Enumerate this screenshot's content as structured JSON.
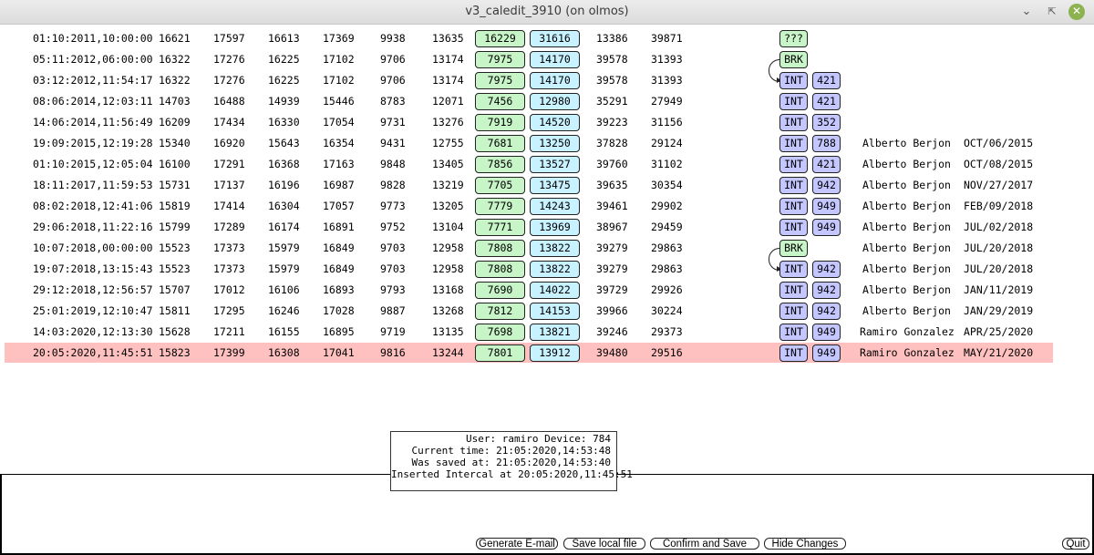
{
  "window": {
    "title": "v3_caledit_3910 (on olmos)",
    "min_icon": "minimize-icon",
    "max_icon": "maximize-icon",
    "close_icon": "close-icon"
  },
  "colors": {
    "green": "#c8f5c8",
    "cyan": "#c8f2ff",
    "purple": "#c4c6ff",
    "selected_row": "#ffc0c0"
  },
  "rows": [
    {
      "ts": "01:10:2011,10:00:00",
      "v": [
        "16621",
        "17597",
        "16613",
        "17369",
        "9938",
        "13635"
      ],
      "g": "16229",
      "b": "31616",
      "w": [
        "13386",
        "39871"
      ],
      "type": "???",
      "num": "",
      "name": "",
      "date": ""
    },
    {
      "ts": "05:11:2012,06:00:00",
      "v": [
        "16322",
        "17276",
        "16225",
        "17102",
        "9706",
        "13174"
      ],
      "g": "7975",
      "b": "14170",
      "w": [
        "39578",
        "31393"
      ],
      "type": "BRK",
      "num": "",
      "name": "",
      "date": ""
    },
    {
      "ts": "03:12:2012,11:54:17",
      "v": [
        "16322",
        "17276",
        "16225",
        "17102",
        "9706",
        "13174"
      ],
      "g": "7975",
      "b": "14170",
      "w": [
        "39578",
        "31393"
      ],
      "type": "INT",
      "num": "421",
      "name": "",
      "date": ""
    },
    {
      "ts": "08:06:2014,12:03:11",
      "v": [
        "14703",
        "16488",
        "14939",
        "15446",
        "8783",
        "12071"
      ],
      "g": "7456",
      "b": "12980",
      "w": [
        "35291",
        "27949"
      ],
      "type": "INT",
      "num": "421",
      "name": "",
      "date": ""
    },
    {
      "ts": "14:06:2014,11:56:49",
      "v": [
        "16209",
        "17434",
        "16330",
        "17054",
        "9731",
        "13276"
      ],
      "g": "7919",
      "b": "14520",
      "w": [
        "39223",
        "31156"
      ],
      "type": "INT",
      "num": "352",
      "name": "",
      "date": ""
    },
    {
      "ts": "19:09:2015,12:19:28",
      "v": [
        "15340",
        "16920",
        "15643",
        "16354",
        "9431",
        "12755"
      ],
      "g": "7681",
      "b": "13250",
      "w": [
        "37828",
        "29124"
      ],
      "type": "INT",
      "num": "788",
      "name": "Alberto Berjon",
      "date": "OCT/06/2015"
    },
    {
      "ts": "01:10:2015,12:05:04",
      "v": [
        "16100",
        "17291",
        "16368",
        "17163",
        "9848",
        "13405"
      ],
      "g": "7856",
      "b": "13527",
      "w": [
        "39760",
        "31102"
      ],
      "type": "INT",
      "num": "421",
      "name": "Alberto Berjon",
      "date": "OCT/08/2015"
    },
    {
      "ts": "18:11:2017,11:59:53",
      "v": [
        "15731",
        "17137",
        "16196",
        "16987",
        "9828",
        "13219"
      ],
      "g": "7705",
      "b": "13475",
      "w": [
        "39635",
        "30354"
      ],
      "type": "INT",
      "num": "942",
      "name": "Alberto Berjon",
      "date": "NOV/27/2017"
    },
    {
      "ts": "08:02:2018,12:41:06",
      "v": [
        "15819",
        "17414",
        "16304",
        "17057",
        "9773",
        "13205"
      ],
      "g": "7779",
      "b": "14243",
      "w": [
        "39461",
        "29902"
      ],
      "type": "INT",
      "num": "949",
      "name": "Alberto Berjon",
      "date": "FEB/09/2018"
    },
    {
      "ts": "29:06:2018,11:22:16",
      "v": [
        "15799",
        "17289",
        "16174",
        "16891",
        "9752",
        "13104"
      ],
      "g": "7771",
      "b": "13969",
      "w": [
        "38967",
        "29459"
      ],
      "type": "INT",
      "num": "949",
      "name": "Alberto Berjon",
      "date": "JUL/02/2018"
    },
    {
      "ts": "10:07:2018,00:00:00",
      "v": [
        "15523",
        "17373",
        "15979",
        "16849",
        "9703",
        "12958"
      ],
      "g": "7808",
      "b": "13822",
      "w": [
        "39279",
        "29863"
      ],
      "type": "BRK",
      "num": "",
      "name": "Alberto Berjon",
      "date": "JUL/20/2018"
    },
    {
      "ts": "19:07:2018,13:15:43",
      "v": [
        "15523",
        "17373",
        "15979",
        "16849",
        "9703",
        "12958"
      ],
      "g": "7808",
      "b": "13822",
      "w": [
        "39279",
        "29863"
      ],
      "type": "INT",
      "num": "942",
      "name": "Alberto Berjon",
      "date": "JUL/20/2018"
    },
    {
      "ts": "29:12:2018,12:56:57",
      "v": [
        "15707",
        "17012",
        "16106",
        "16893",
        "9793",
        "13168"
      ],
      "g": "7690",
      "b": "14022",
      "w": [
        "39729",
        "29926"
      ],
      "type": "INT",
      "num": "942",
      "name": "Alberto Berjon",
      "date": "JAN/11/2019"
    },
    {
      "ts": "25:01:2019,12:10:47",
      "v": [
        "15811",
        "17295",
        "16246",
        "17028",
        "9887",
        "13268"
      ],
      "g": "7812",
      "b": "14153",
      "w": [
        "39966",
        "30224"
      ],
      "type": "INT",
      "num": "942",
      "name": "Alberto Berjon",
      "date": "JAN/29/2019"
    },
    {
      "ts": "14:03:2020,12:13:30",
      "v": [
        "15628",
        "17211",
        "16155",
        "16895",
        "9719",
        "13135"
      ],
      "g": "7698",
      "b": "13821",
      "w": [
        "39246",
        "29373"
      ],
      "type": "INT",
      "num": "949",
      "name": "Ramiro Gonzalez",
      "date": "APR/25/2020"
    },
    {
      "ts": "20:05:2020,11:45:51",
      "v": [
        "15823",
        "17399",
        "16308",
        "17041",
        "9816",
        "13244"
      ],
      "g": "7801",
      "b": "13912",
      "w": [
        "39480",
        "29516"
      ],
      "type": "INT",
      "num": "949",
      "name": "Ramiro Gonzalez",
      "date": "MAY/21/2020",
      "selected": true
    }
  ],
  "info": {
    "line1": "User: ramiro Device: 784",
    "line2": "Current time: 21:05:2020,14:53:48",
    "line3": "Was saved at: 21:05:2020,14:53:40",
    "line4": "Inserted Intercal at 20:05:2020,11:45:51"
  },
  "buttons": {
    "email": "Generate E-mail",
    "save_local": "Save local file",
    "confirm": "Confirm and Save",
    "hide": "Hide Changes",
    "quit": "Quit"
  }
}
